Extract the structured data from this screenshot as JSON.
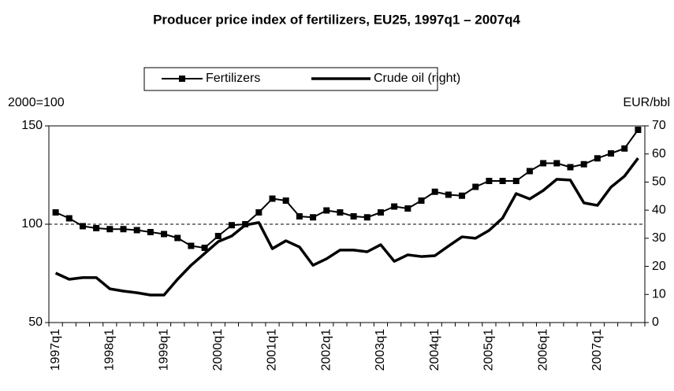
{
  "chart_data": {
    "type": "line",
    "title": "Producer price index of fertilizers, EU25, 1997q1 – 2007q4",
    "y_label": "2000=100",
    "y2_label": "EUR/bbl",
    "categories": [
      "1997q1",
      null,
      null,
      null,
      "1998q1",
      null,
      null,
      null,
      "1999q1",
      null,
      null,
      null,
      "2000q1",
      null,
      null,
      null,
      "2001q1",
      null,
      null,
      null,
      "2002q1",
      null,
      null,
      null,
      "2003q1",
      null,
      null,
      null,
      "2004q1",
      null,
      null,
      null,
      "2005q1",
      null,
      null,
      null,
      "2006q1",
      null,
      null,
      null,
      "2007q1",
      null,
      null,
      null
    ],
    "series": [
      {
        "name": "Fertilizers",
        "color": "#000000",
        "marker": "square",
        "values": [
          106,
          103,
          99,
          98,
          97.5,
          97.5,
          97,
          96,
          95,
          93,
          89,
          88,
          94,
          99.5,
          100,
          106,
          113,
          112,
          104,
          103.5,
          107,
          106,
          104,
          103.5,
          106,
          109,
          108,
          112,
          116.5,
          115,
          114.5,
          119,
          122,
          122,
          122,
          127,
          131,
          131,
          129,
          130.5,
          133.5,
          136,
          138.5,
          148
        ]
      },
      {
        "name": "Crude oil (right)",
        "color": "#000000",
        "axis": "y2",
        "values": [
          17.6,
          15.4,
          16,
          16,
          12,
          11.2,
          10.6,
          9.8,
          9.8,
          15.4,
          20.4,
          24.6,
          28.8,
          30.8,
          34.7,
          35.6,
          26.3,
          29.1,
          26.9,
          20.4,
          22.7,
          25.8,
          25.8,
          25.2,
          27.7,
          21.8,
          24.1,
          23.5,
          23.8,
          27.2,
          30.5,
          30,
          32.8,
          37.2,
          45.9,
          44,
          47,
          51,
          50.7,
          42.6,
          41.7,
          48.2,
          52.1,
          58.5
        ]
      }
    ],
    "ylim": [
      50,
      150
    ],
    "yticks": [
      50,
      100,
      150
    ],
    "y2lim": [
      0,
      70
    ],
    "y2ticks": [
      0,
      10,
      20,
      30,
      40,
      50,
      60,
      70
    ],
    "reference_line": 100,
    "legend": "top"
  }
}
